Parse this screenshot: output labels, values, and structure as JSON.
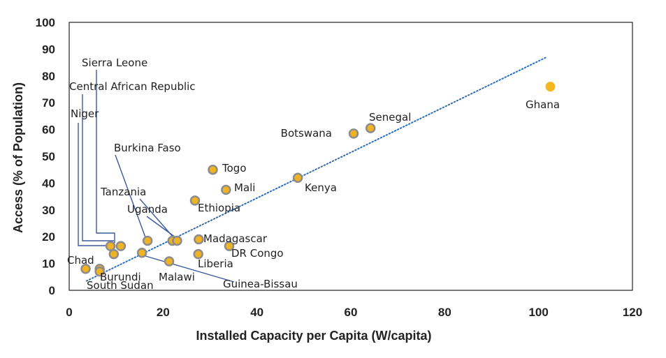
{
  "chart_data": {
    "type": "scatter",
    "xlabel": "Installed Capacity per Capita (W/capita)",
    "ylabel": "Access (% of Population)",
    "xlim": [
      0,
      120
    ],
    "ylim": [
      0,
      100
    ],
    "xticks": [
      0,
      20,
      40,
      60,
      80,
      100,
      120
    ],
    "yticks": [
      0,
      10,
      20,
      30,
      40,
      50,
      60,
      70,
      80,
      90,
      100
    ],
    "xtick_labels": [
      "0",
      "20",
      "40",
      "60",
      "80",
      "100",
      "120"
    ],
    "ytick_labels": [
      "0",
      "10",
      "20",
      "30",
      "40",
      "50",
      "60",
      "70",
      "80",
      "90",
      "100"
    ],
    "grid": false,
    "trendline": {
      "style": "dotted",
      "color": "#2e6db4",
      "x": [
        3.7,
        101.7
      ],
      "y": [
        3.5,
        87.0
      ]
    },
    "marker_color": "#f0b323",
    "marker_edge_color": "#8c8c8c",
    "highlight_color": "#f5b81c",
    "points": [
      {
        "name": "Chad",
        "x": 3.5,
        "y": 8
      },
      {
        "name": "Burundi",
        "x": 6.5,
        "y": 8
      },
      {
        "name": "South Sudan",
        "x": 6.5,
        "y": 7
      },
      {
        "name": "Niger",
        "x": 8.8,
        "y": 16.5
      },
      {
        "name": "Central African Republic",
        "x": 9.5,
        "y": 13.5
      },
      {
        "name": "Sierra Leone",
        "x": 11,
        "y": 16.5
      },
      {
        "name": "Burkina Faso",
        "x": 16.7,
        "y": 18.5
      },
      {
        "name": "Guinea-Bissau",
        "x": 15.5,
        "y": 14
      },
      {
        "name": "Tanzania",
        "x": 22,
        "y": 18.5
      },
      {
        "name": "Uganda",
        "x": 23,
        "y": 18.5
      },
      {
        "name": "Malawi",
        "x": 21.3,
        "y": 10.8
      },
      {
        "name": "Ethiopia",
        "x": 26.8,
        "y": 33.5
      },
      {
        "name": "Madagascar",
        "x": 27.6,
        "y": 19
      },
      {
        "name": "Liberia",
        "x": 27.5,
        "y": 13.5
      },
      {
        "name": "Togo",
        "x": 30.6,
        "y": 45
      },
      {
        "name": "Mali",
        "x": 33.4,
        "y": 37.5
      },
      {
        "name": "DR Congo",
        "x": 34.1,
        "y": 16.5
      },
      {
        "name": "Kenya",
        "x": 48.7,
        "y": 42
      },
      {
        "name": "Botswana",
        "x": 60.6,
        "y": 58.5
      },
      {
        "name": "Senegal",
        "x": 64.2,
        "y": 60.5
      },
      {
        "name": "Ghana",
        "x": 102.5,
        "y": 76,
        "highlight": true
      }
    ]
  }
}
